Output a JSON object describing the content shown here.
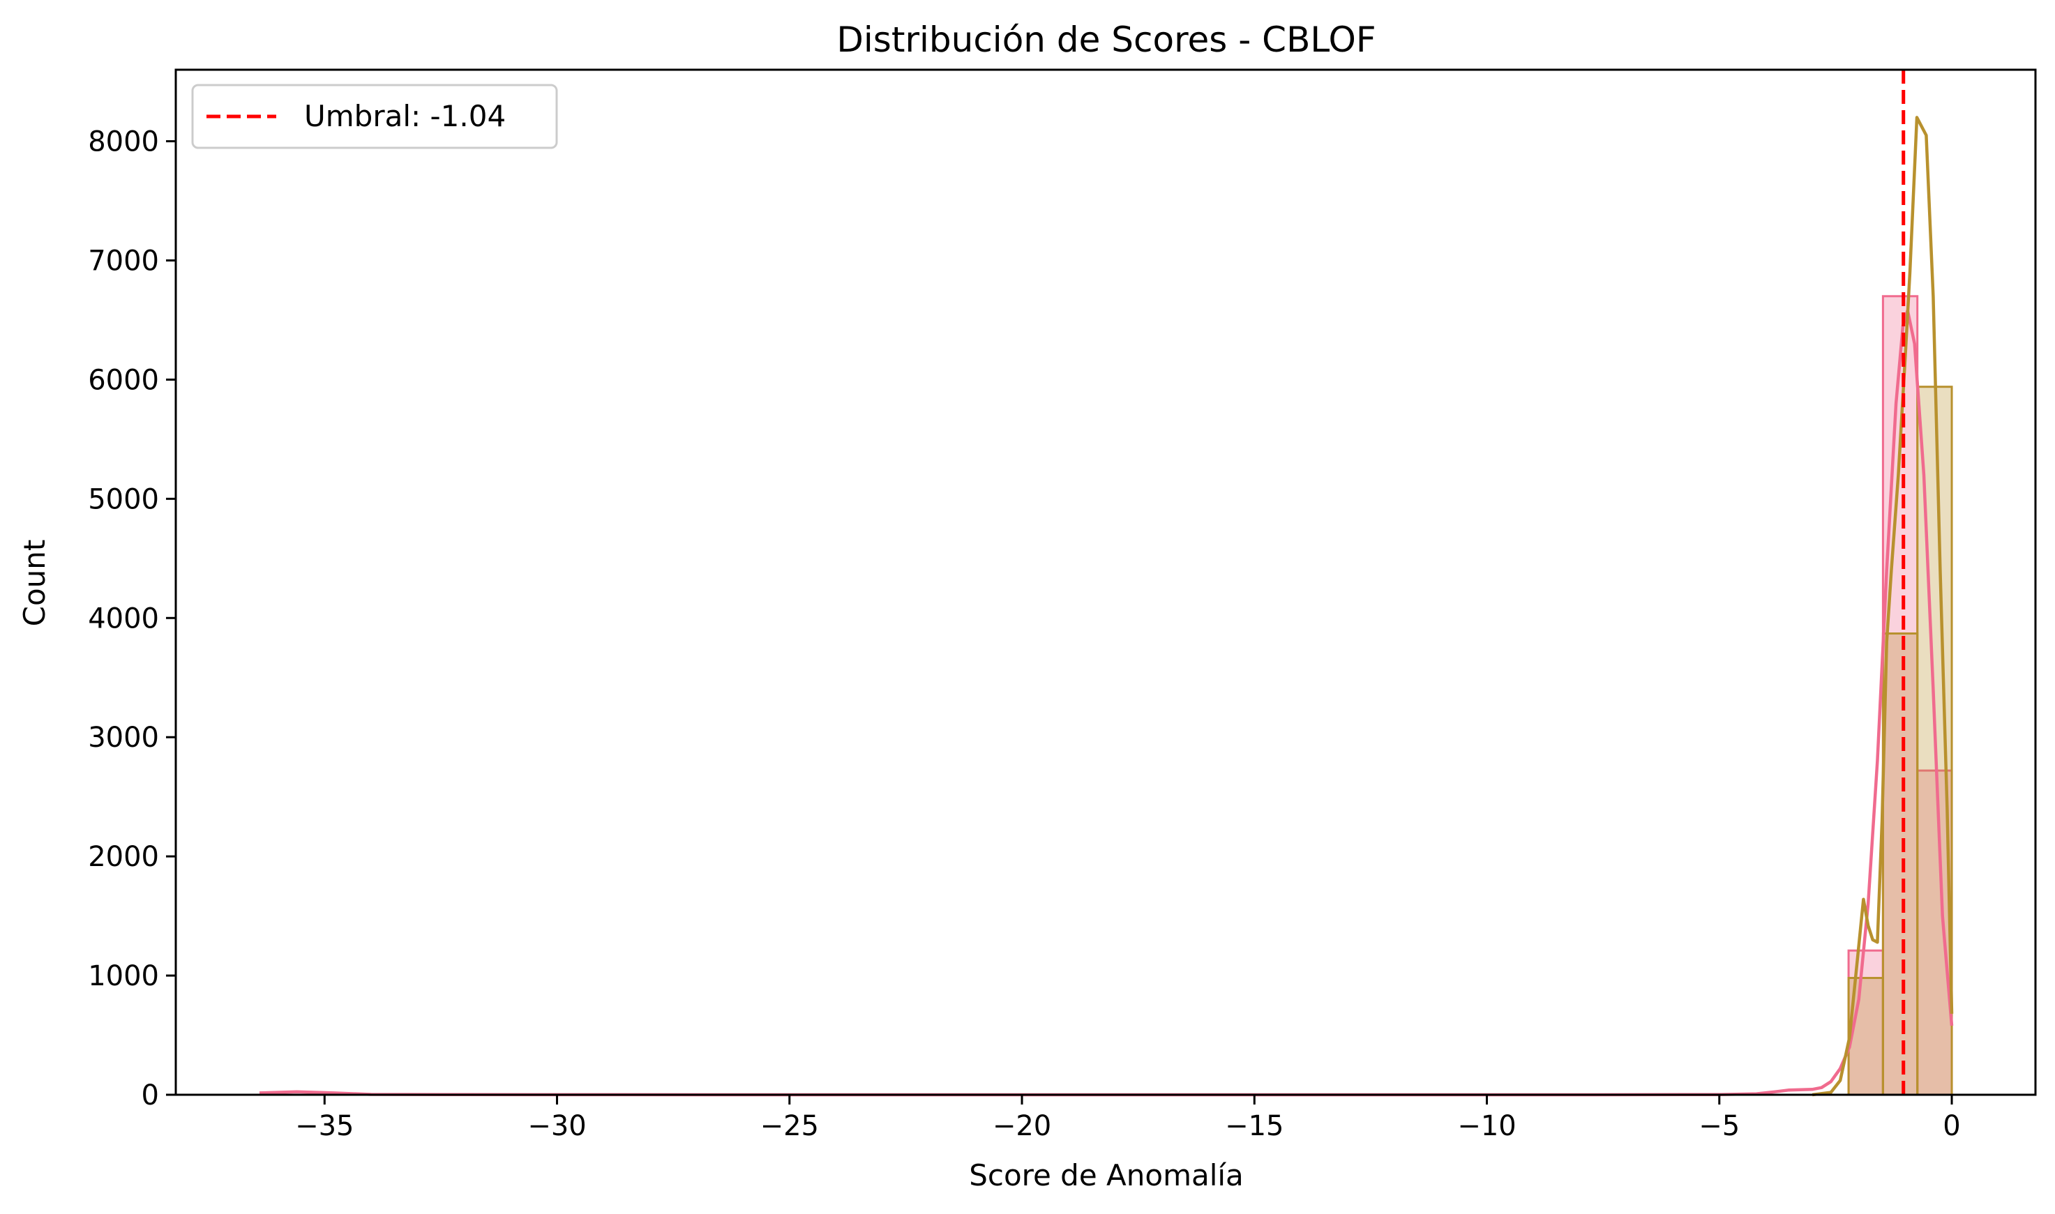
{
  "chart_data": {
    "type": "histogram",
    "title": "Distribución de Scores - CBLOF",
    "xlabel": "Score de Anomalía",
    "ylabel": "Count",
    "xlim": [
      -38.2,
      1.8
    ],
    "ylim": [
      0,
      8600
    ],
    "x_ticks": [
      -35,
      -30,
      -25,
      -20,
      -15,
      -10,
      -5,
      0
    ],
    "x_tick_labels": [
      "−35",
      "−30",
      "−25",
      "−20",
      "−15",
      "−10",
      "−5",
      "0"
    ],
    "y_ticks": [
      0,
      1000,
      2000,
      3000,
      4000,
      5000,
      6000,
      7000,
      8000
    ],
    "y_tick_labels": [
      "0",
      "1000",
      "2000",
      "3000",
      "4000",
      "5000",
      "6000",
      "7000",
      "8000"
    ],
    "grid": false,
    "legend_position": "upper-left",
    "threshold": {
      "label": "Umbral: -1.04",
      "value": -1.04,
      "color": "#ff0000"
    },
    "series": [
      {
        "color": "#f06b8e",
        "bins": [
          {
            "x0": -2.22,
            "x1": -1.48,
            "count": 1210
          },
          {
            "x0": -1.48,
            "x1": -0.74,
            "count": 6700
          },
          {
            "x0": -0.74,
            "x1": 0.0,
            "count": 2720
          }
        ],
        "kde": [
          [
            -36.4,
            15
          ],
          [
            -35.6,
            25
          ],
          [
            -34.8,
            15
          ],
          [
            -34.0,
            3
          ],
          [
            -32,
            1
          ],
          [
            -25,
            0
          ],
          [
            -15,
            0
          ],
          [
            -8,
            0
          ],
          [
            -5,
            2
          ],
          [
            -4.2,
            8
          ],
          [
            -3.8,
            25
          ],
          [
            -3.5,
            40
          ],
          [
            -3.0,
            45
          ],
          [
            -2.8,
            60
          ],
          [
            -2.6,
            110
          ],
          [
            -2.4,
            220
          ],
          [
            -2.2,
            400
          ],
          [
            -2.0,
            800
          ],
          [
            -1.8,
            1600
          ],
          [
            -1.6,
            2800
          ],
          [
            -1.4,
            4400
          ],
          [
            -1.2,
            5800
          ],
          [
            -1.05,
            6450
          ],
          [
            -0.95,
            6580
          ],
          [
            -0.8,
            6300
          ],
          [
            -0.6,
            5200
          ],
          [
            -0.4,
            3400
          ],
          [
            -0.2,
            1500
          ],
          [
            0.0,
            580
          ]
        ]
      },
      {
        "color": "#b8912e",
        "bins": [
          {
            "x0": -2.22,
            "x1": -1.48,
            "count": 980
          },
          {
            "x0": -1.48,
            "x1": -0.74,
            "count": 3870
          },
          {
            "x0": -0.74,
            "x1": 0.0,
            "count": 5940
          }
        ],
        "kde": [
          [
            -3.0,
            0
          ],
          [
            -2.6,
            20
          ],
          [
            -2.4,
            120
          ],
          [
            -2.2,
            480
          ],
          [
            -2.0,
            1250
          ],
          [
            -1.9,
            1640
          ],
          [
            -1.8,
            1420
          ],
          [
            -1.7,
            1300
          ],
          [
            -1.6,
            1280
          ],
          [
            -1.5,
            2300
          ],
          [
            -1.4,
            3800
          ],
          [
            -1.3,
            4400
          ],
          [
            -1.15,
            5200
          ],
          [
            -1.0,
            6200
          ],
          [
            -0.9,
            6900
          ],
          [
            -0.75,
            8200
          ],
          [
            -0.55,
            8050
          ],
          [
            -0.4,
            6700
          ],
          [
            -0.25,
            4400
          ],
          [
            -0.1,
            2400
          ],
          [
            0.0,
            680
          ]
        ]
      }
    ]
  }
}
